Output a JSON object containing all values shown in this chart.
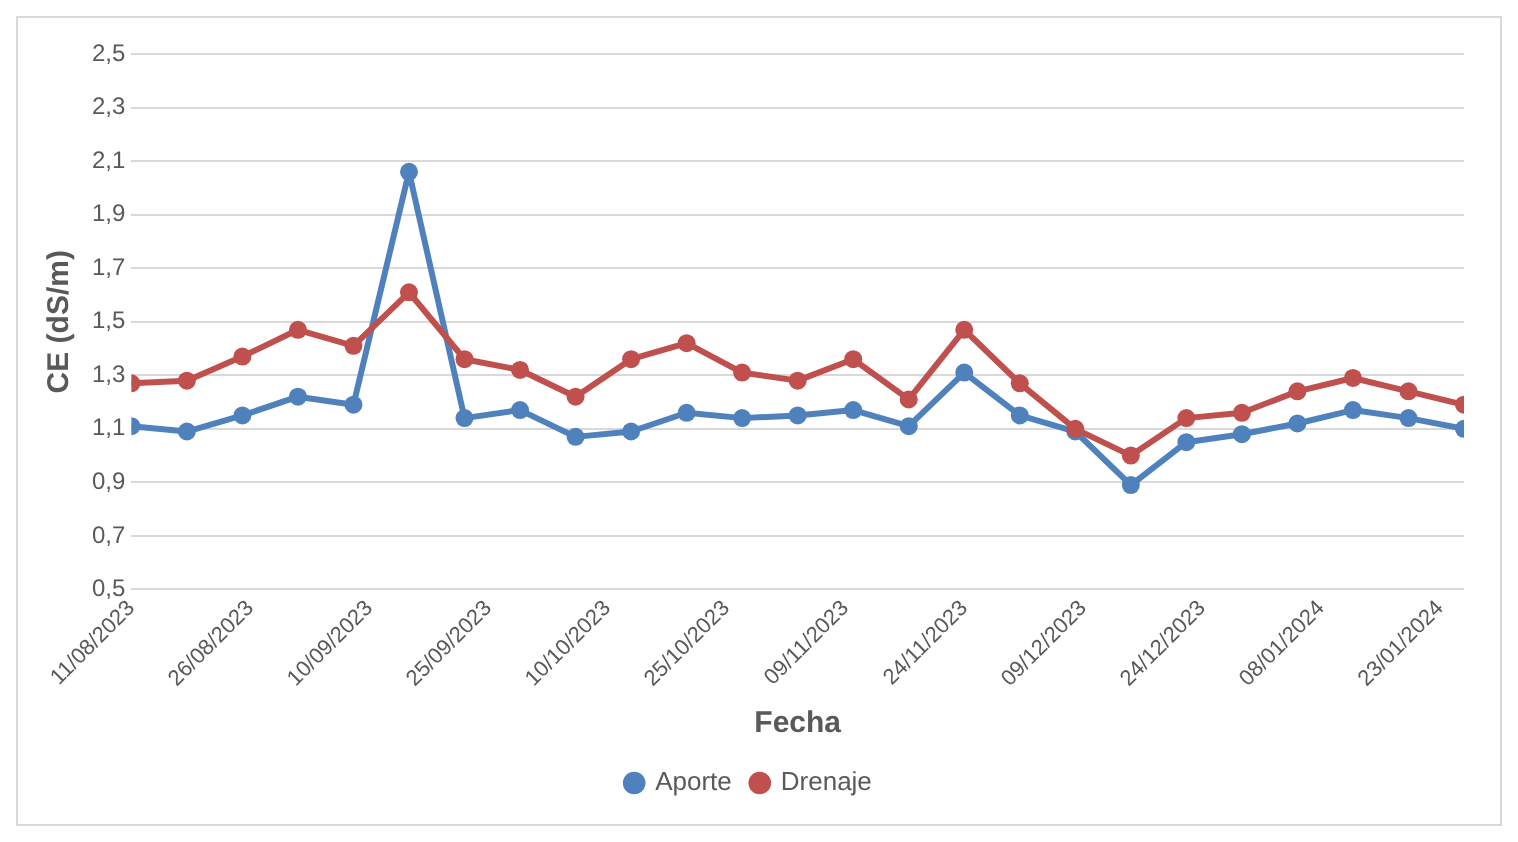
{
  "chart_data": {
    "type": "line",
    "xlabel": "Fecha",
    "ylabel": "CE (dS/m)",
    "x": [
      "2023-08-11",
      "2023-08-18",
      "2023-08-25",
      "2023-09-01",
      "2023-09-08",
      "2023-09-15",
      "2023-09-22",
      "2023-09-29",
      "2023-10-06",
      "2023-10-13",
      "2023-10-20",
      "2023-10-27",
      "2023-11-03",
      "2023-11-10",
      "2023-11-17",
      "2023-11-24",
      "2023-12-01",
      "2023-12-08",
      "2023-12-15",
      "2023-12-22",
      "2023-12-29",
      "2024-01-05",
      "2024-01-12",
      "2024-01-19",
      "2024-01-26"
    ],
    "series": [
      {
        "name": "Aporte",
        "color": "#4f81bd",
        "values": [
          1.11,
          1.09,
          1.15,
          1.22,
          1.19,
          2.06,
          1.14,
          1.17,
          1.07,
          1.09,
          1.16,
          1.14,
          1.15,
          1.17,
          1.11,
          1.31,
          1.15,
          1.09,
          0.89,
          1.05,
          1.08,
          1.12,
          1.17,
          1.14,
          1.1
        ]
      },
      {
        "name": "Drenaje",
        "color": "#c0504d",
        "values": [
          1.27,
          1.28,
          1.37,
          1.47,
          1.41,
          1.61,
          1.36,
          1.32,
          1.22,
          1.36,
          1.42,
          1.31,
          1.28,
          1.36,
          1.21,
          1.47,
          1.27,
          1.1,
          1.0,
          1.14,
          1.16,
          1.24,
          1.29,
          1.24,
          1.19
        ]
      }
    ],
    "ylim": [
      0.5,
      2.5
    ],
    "yticks": [
      {
        "value": 0.5,
        "label": "0,5"
      },
      {
        "value": 0.7,
        "label": "0,7"
      },
      {
        "value": 0.9,
        "label": "0,9"
      },
      {
        "value": 1.1,
        "label": "1,1"
      },
      {
        "value": 1.3,
        "label": "1,3"
      },
      {
        "value": 1.5,
        "label": "1,5"
      },
      {
        "value": 1.7,
        "label": "1,7"
      },
      {
        "value": 1.9,
        "label": "1,9"
      },
      {
        "value": 2.1,
        "label": "2,1"
      },
      {
        "value": 2.3,
        "label": "2,3"
      },
      {
        "value": 2.5,
        "label": "2,5"
      }
    ],
    "xlim": [
      "2023-08-11",
      "2024-01-26"
    ],
    "xticks": [
      {
        "value": "2023-08-11",
        "label": "11/08/2023"
      },
      {
        "value": "2023-08-26",
        "label": "26/08/2023"
      },
      {
        "value": "2023-09-10",
        "label": "10/09/2023"
      },
      {
        "value": "2023-09-25",
        "label": "25/09/2023"
      },
      {
        "value": "2023-10-10",
        "label": "10/10/2023"
      },
      {
        "value": "2023-10-25",
        "label": "25/10/2023"
      },
      {
        "value": "2023-11-09",
        "label": "09/11/2023"
      },
      {
        "value": "2023-11-24",
        "label": "24/11/2023"
      },
      {
        "value": "2023-12-09",
        "label": "09/12/2023"
      },
      {
        "value": "2023-12-24",
        "label": "24/12/2023"
      },
      {
        "value": "2024-01-08",
        "label": "08/01/2024"
      },
      {
        "value": "2024-01-23",
        "label": "23/01/2024"
      }
    ],
    "grid": "y",
    "legend": "bottom",
    "marker": "circle",
    "line_style": "solid"
  }
}
